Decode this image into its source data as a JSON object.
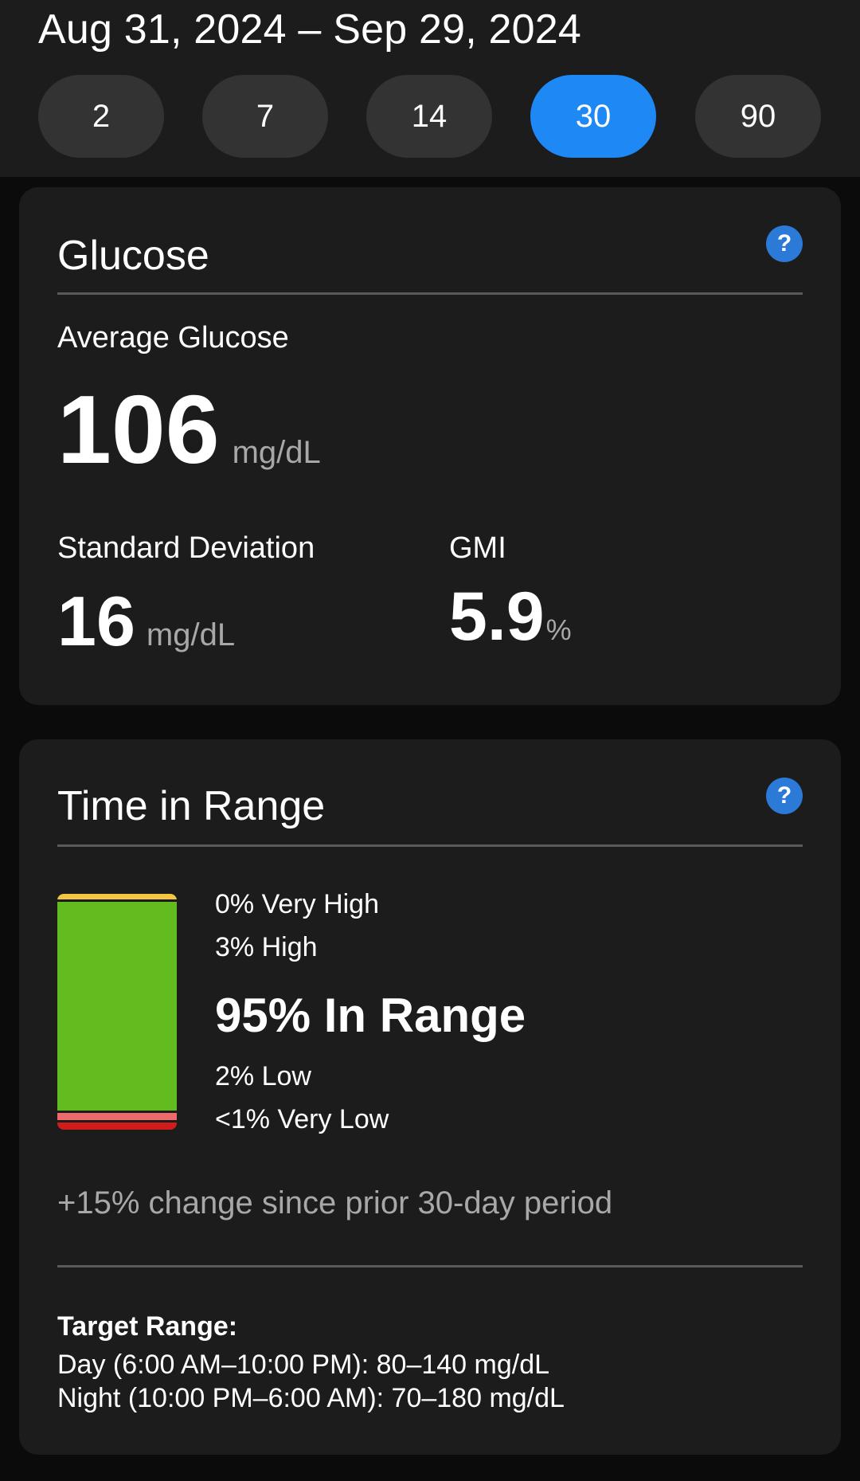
{
  "header": {
    "date_range": "Aug 31, 2024 – Sep 29, 2024",
    "periods": [
      "2",
      "7",
      "14",
      "30",
      "90"
    ],
    "selected_period": "30"
  },
  "glucose": {
    "title": "Glucose",
    "help_icon": "question-icon",
    "average_label": "Average Glucose",
    "average_value": "106",
    "average_unit": "mg/dL",
    "sd_label": "Standard Deviation",
    "sd_value": "16",
    "sd_unit": "mg/dL",
    "gmi_label": "GMI",
    "gmi_value": "5.9",
    "gmi_unit": "%"
  },
  "time_in_range": {
    "title": "Time in Range",
    "help_icon": "question-icon",
    "very_high": "0% Very High",
    "high": "3% High",
    "in_range": "95% In Range",
    "low": "2% Low",
    "very_low": "<1% Very Low",
    "change_text": "+15% change since prior 30-day period",
    "target_title": "Target Range:",
    "target_day": "Day (6:00 AM–10:00 PM): 80–140 mg/dL",
    "target_night": "Night (10:00 PM–6:00 AM): 70–180 mg/dL"
  },
  "colors": {
    "accent": "#1e88f5",
    "help": "#2b7ad8",
    "very_high": "#f4c542",
    "in_range": "#62bb1f",
    "low": "#ef6b6b",
    "very_low": "#d11c1c"
  }
}
